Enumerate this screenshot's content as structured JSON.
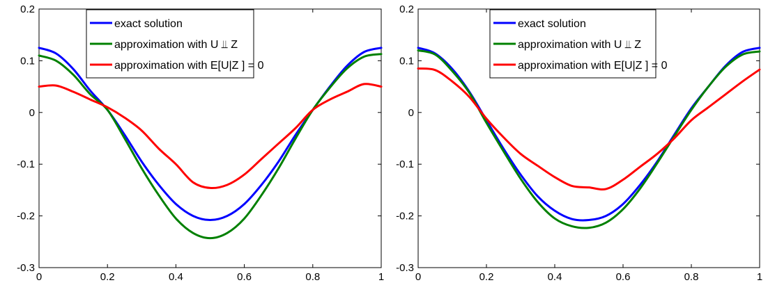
{
  "chart_data": [
    {
      "type": "line",
      "xlim": [
        0,
        1
      ],
      "ylim": [
        -0.3,
        0.2
      ],
      "xticks": [
        "0",
        "0.2",
        "0.4",
        "0.6",
        "0.8",
        "1"
      ],
      "yticks": [
        "-0.3",
        "-0.2",
        "-0.1",
        "0",
        "0.1",
        "0.2"
      ],
      "grid": false,
      "legend_position": "top-center",
      "x": [
        0,
        0.05,
        0.1,
        0.15,
        0.2,
        0.25,
        0.3,
        0.35,
        0.4,
        0.45,
        0.5,
        0.55,
        0.6,
        0.65,
        0.7,
        0.75,
        0.8,
        0.85,
        0.9,
        0.95,
        1
      ],
      "series": [
        {
          "name": "exact solution",
          "color": "#0000ff",
          "values": [
            0.125,
            0.114,
            0.084,
            0.042,
            0.005,
            -0.043,
            -0.095,
            -0.14,
            -0.177,
            -0.2,
            -0.208,
            -0.2,
            -0.177,
            -0.14,
            -0.095,
            -0.043,
            0.005,
            0.05,
            0.09,
            0.117,
            0.125
          ]
        },
        {
          "name": "approximation with U ⫫ Z",
          "color": "#008000",
          "values": [
            0.11,
            0.1,
            0.073,
            0.035,
            0.005,
            -0.05,
            -0.108,
            -0.16,
            -0.205,
            -0.233,
            -0.243,
            -0.233,
            -0.205,
            -0.16,
            -0.108,
            -0.05,
            0.005,
            0.048,
            0.085,
            0.108,
            0.113
          ]
        },
        {
          "name": "approximation with E[U|Z ] = 0",
          "color": "#ff0000",
          "values": [
            0.05,
            0.052,
            0.04,
            0.025,
            0.01,
            -0.01,
            -0.035,
            -0.07,
            -0.1,
            -0.135,
            -0.146,
            -0.14,
            -0.12,
            -0.09,
            -0.06,
            -0.03,
            0.005,
            0.025,
            0.04,
            0.055,
            0.05
          ]
        }
      ]
    },
    {
      "type": "line",
      "xlim": [
        0,
        1
      ],
      "ylim": [
        -0.3,
        0.2
      ],
      "xticks": [
        "0",
        "0.2",
        "0.4",
        "0.6",
        "0.8",
        "1"
      ],
      "yticks": [
        "-0.3",
        "-0.2",
        "-0.1",
        "0",
        "0.1",
        "0.2"
      ],
      "grid": false,
      "legend_position": "top-center",
      "x": [
        0,
        0.05,
        0.1,
        0.15,
        0.2,
        0.25,
        0.3,
        0.35,
        0.4,
        0.45,
        0.5,
        0.55,
        0.6,
        0.65,
        0.7,
        0.75,
        0.8,
        0.85,
        0.9,
        0.95,
        1
      ],
      "series": [
        {
          "name": "exact solution",
          "color": "#0000ff",
          "values": [
            0.125,
            0.114,
            0.084,
            0.04,
            -0.015,
            -0.07,
            -0.12,
            -0.162,
            -0.19,
            -0.206,
            -0.208,
            -0.2,
            -0.177,
            -0.14,
            -0.095,
            -0.043,
            0.008,
            0.05,
            0.09,
            0.117,
            0.125
          ]
        },
        {
          "name": "approximation with U ⫫ Z",
          "color": "#008000",
          "values": [
            0.12,
            0.112,
            0.08,
            0.038,
            -0.02,
            -0.075,
            -0.128,
            -0.173,
            -0.205,
            -0.22,
            -0.223,
            -0.213,
            -0.187,
            -0.147,
            -0.098,
            -0.046,
            0.005,
            0.05,
            0.088,
            0.112,
            0.118
          ]
        },
        {
          "name": "approximation with E[U|Z ] = 0",
          "color": "#ff0000",
          "values": [
            0.085,
            0.082,
            0.06,
            0.03,
            -0.012,
            -0.048,
            -0.08,
            -0.103,
            -0.125,
            -0.142,
            -0.145,
            -0.148,
            -0.13,
            -0.105,
            -0.08,
            -0.05,
            -0.015,
            0.01,
            0.035,
            0.06,
            0.083
          ]
        }
      ]
    }
  ]
}
